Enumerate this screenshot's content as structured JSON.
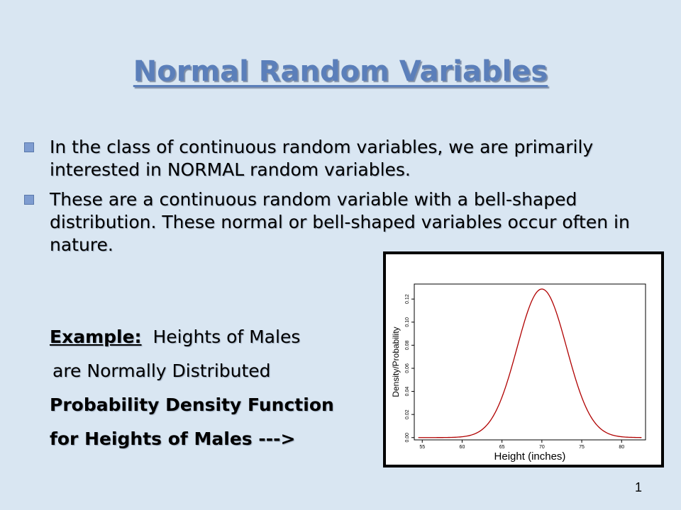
{
  "slide": {
    "title": "Normal Random Variables",
    "bullets": [
      "In the class of continuous random variables, we are primarily interested in NORMAL random variables.",
      "These are a continuous random variable with a bell-shaped distribution.  These normal or bell-shaped variables occur often in nature."
    ],
    "example": {
      "label": "Example:",
      "line1_rest": "Heights of Males",
      "line2": "are Normally Distributed",
      "line3": "Probability Density Function",
      "line4": "for Heights of Males   --->"
    },
    "page_number": "1",
    "colors": {
      "background": "#d9e6f2",
      "title": "#5b7fba",
      "curve": "#b00000"
    }
  },
  "chart_data": {
    "type": "line",
    "xlabel": "Height (inches)",
    "ylabel": "Density/Probability",
    "x_ticks": [
      55,
      60,
      65,
      70,
      75,
      80
    ],
    "y_ticks": [
      "0.00",
      "0.02",
      "0.04",
      "0.06",
      "0.08",
      "0.10",
      "0.12"
    ],
    "xlim": [
      54,
      83
    ],
    "ylim": [
      -0.002,
      0.133
    ],
    "distribution": {
      "family": "normal",
      "mean": 70,
      "sd": 3.1,
      "x_range": [
        54.5,
        82.5
      ]
    }
  }
}
